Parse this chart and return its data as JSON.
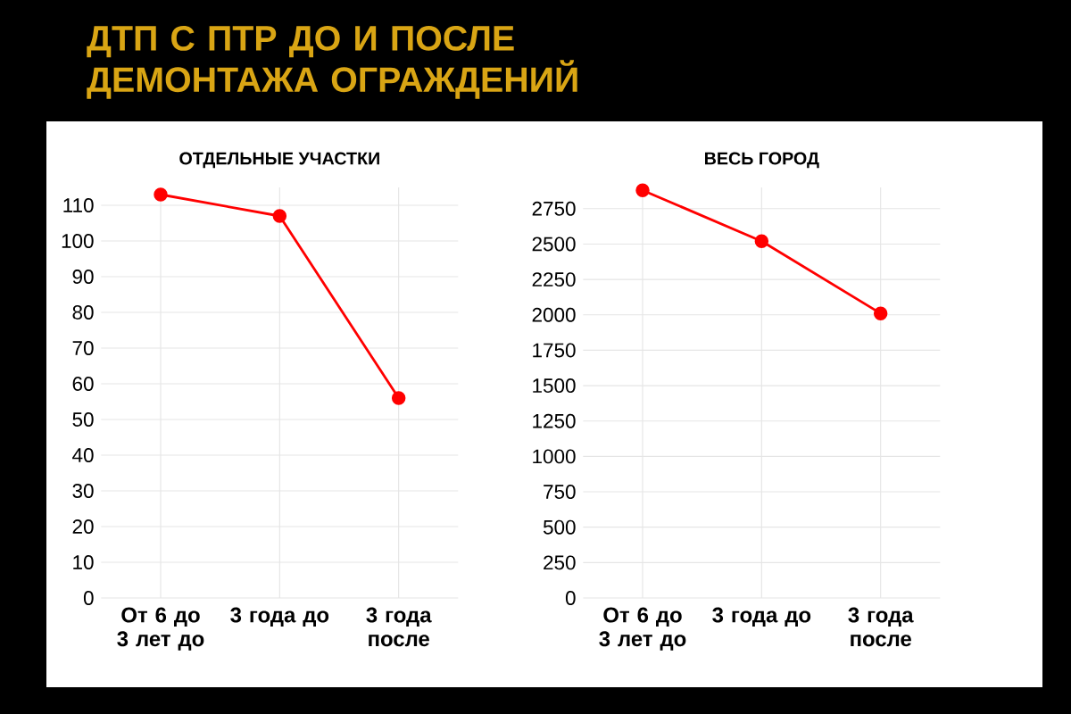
{
  "chart_data": [
    {
      "type": "other",
      "title": "ДТП С ПТР ДО И ПОСЛЕ ДЕМОНТАЖА ОГРАЖДЕНИЙ"
    },
    {
      "type": "line",
      "title": "ОТДЕЛЬНЫЕ УЧАСТКИ",
      "categories": [
        "От 6 до 3 лет до",
        "3 года до",
        "3 года после"
      ],
      "series": [
        {
          "color": "#ff0000",
          "values": [
            113,
            107,
            56
          ]
        }
      ],
      "ylim": [
        0,
        115
      ],
      "yticks": [
        0,
        10,
        20,
        30,
        40,
        50,
        60,
        70,
        80,
        90,
        100,
        110
      ],
      "grid": true,
      "marker": "circle",
      "line_style": "solid"
    },
    {
      "type": "line",
      "title": "ВЕСЬ ГОРОД",
      "categories": [
        "От 6 до 3 лет до",
        "3 года до",
        "3 года после"
      ],
      "series": [
        {
          "color": "#ff0000",
          "values": [
            2880,
            2520,
            2010
          ]
        }
      ],
      "ylim": [
        0,
        2900
      ],
      "yticks": [
        0,
        250,
        500,
        750,
        1000,
        1250,
        1500,
        1750,
        2000,
        2250,
        2500,
        2750
      ],
      "grid": true,
      "marker": "circle",
      "line_style": "solid"
    }
  ]
}
